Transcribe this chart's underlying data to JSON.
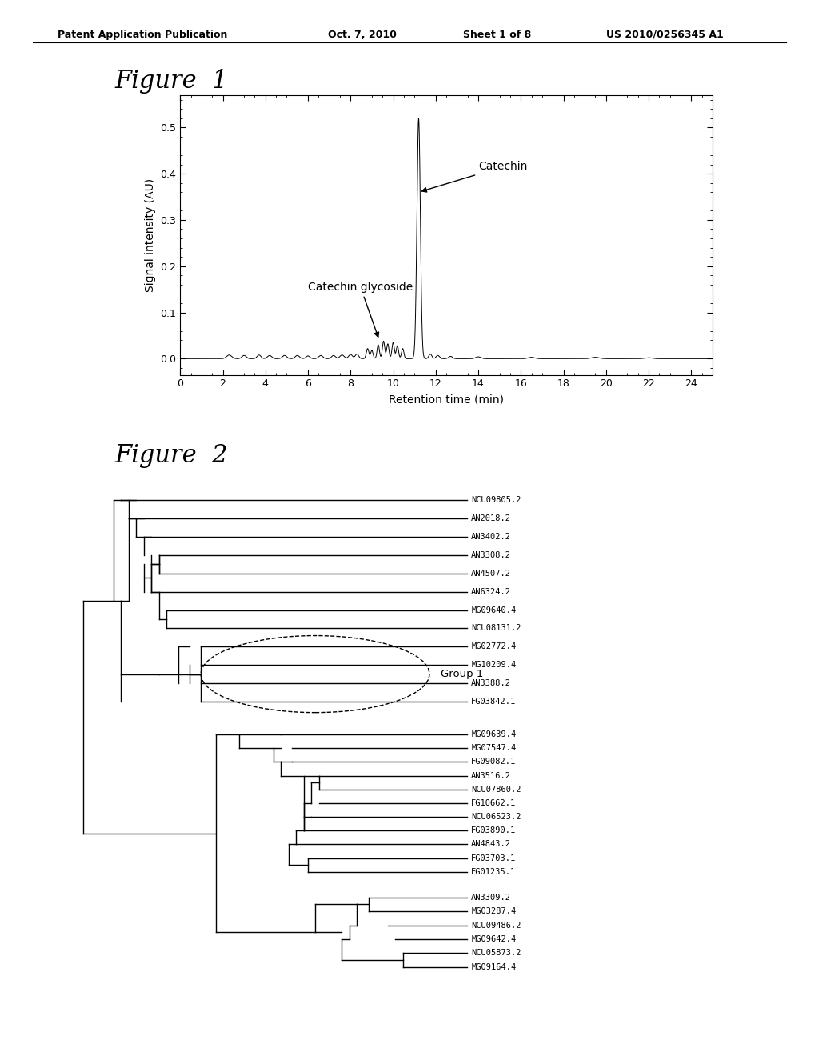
{
  "background_color": "#ffffff",
  "header_text": "Patent Application Publication",
  "header_date": "Oct. 7, 2010",
  "header_sheet": "Sheet 1 of 8",
  "header_patent": "US 2010/0256345 A1",
  "fig1_title": "Figure  1",
  "fig1_ylabel": "Signal intensity (AU)",
  "fig1_xlabel": "Retention time (min)",
  "fig1_xlim": [
    0,
    25
  ],
  "fig1_ylim": [
    -0.035,
    0.57
  ],
  "fig1_yticks": [
    0.0,
    0.1,
    0.2,
    0.3,
    0.4,
    0.5
  ],
  "fig1_ytick_labels": [
    "0.0",
    "0.1",
    "0.2",
    "0.3",
    "0.4",
    "0.5"
  ],
  "fig1_xticks": [
    0,
    2,
    4,
    6,
    8,
    10,
    12,
    14,
    16,
    18,
    20,
    22,
    24
  ],
  "fig2_title": "Figure  2",
  "fig2_group1_label": "Group 1",
  "tree_labels_top": [
    "NCU09805.2",
    "AN2018.2",
    "AN3402.2",
    "AN3308.2",
    "AN4507.2",
    "AN6324.2",
    "MG09640.4",
    "NCU08131.2",
    "MG02772.4",
    "MG10209.4",
    "AN3388.2",
    "FG03842.1"
  ],
  "tree_labels_mid": [
    "MG09639.4",
    "MG07547.4",
    "FG09082.1",
    "AN3516.2",
    "NCU07860.2",
    "FG10662.1",
    "NCU06523.2",
    "FG03890.1",
    "AN4843.2",
    "FG03703.1",
    "FG01235.1"
  ],
  "tree_labels_bot": [
    "AN3309.2",
    "MG03287.4",
    "NCU09486.2",
    "MG09642.4",
    "NCU05873.2",
    "MG09164.4"
  ]
}
